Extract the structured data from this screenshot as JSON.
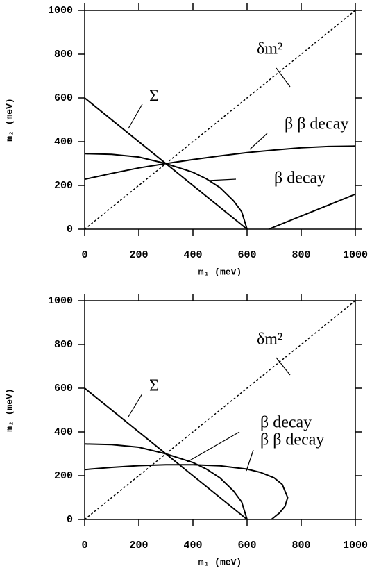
{
  "chart_data": [
    {
      "type": "line",
      "x_label": "m₁ (meV)",
      "y_label": "m₂ (meV)",
      "xlim": [
        0,
        1000
      ],
      "ylim": [
        0,
        1000
      ],
      "xticks": [
        0,
        200,
        400,
        600,
        800,
        1000
      ],
      "yticks": [
        0,
        200,
        400,
        600,
        800,
        1000
      ],
      "series": [
        {
          "name": "Σ",
          "color": "#000000",
          "style": "solid",
          "x": [
            0,
            600
          ],
          "values": [
            600,
            0
          ]
        },
        {
          "name": "δm²",
          "color": "#000000",
          "style": "dashed",
          "x": [
            0,
            1000
          ],
          "values": [
            0,
            1000
          ]
        },
        {
          "name": "β β decay",
          "color": "#000000",
          "style": "solid",
          "x": [
            0,
            100,
            200,
            300,
            400,
            500,
            600,
            700,
            800,
            900,
            1000,
            null,
            680,
            800,
            900,
            1000
          ],
          "values": [
            228,
            255,
            280,
            300,
            318,
            335,
            350,
            362,
            372,
            378,
            380,
            null,
            0,
            60,
            110,
            160
          ]
        },
        {
          "name": "β decay",
          "color": "#000000",
          "style": "solid",
          "x": [
            0,
            100,
            200,
            300,
            400,
            450,
            500,
            550,
            580,
            600
          ],
          "values": [
            345,
            342,
            330,
            300,
            260,
            230,
            190,
            130,
            80,
            0
          ]
        }
      ]
    },
    {
      "type": "line",
      "x_label": "m₁ (meV)",
      "y_label": "m₂ (meV)",
      "xlim": [
        0,
        1000
      ],
      "ylim": [
        0,
        1000
      ],
      "xticks": [
        0,
        200,
        400,
        600,
        800,
        1000
      ],
      "yticks": [
        0,
        200,
        400,
        600,
        800,
        1000
      ],
      "series": [
        {
          "name": "Σ",
          "color": "#000000",
          "style": "solid",
          "x": [
            0,
            600
          ],
          "values": [
            600,
            0
          ]
        },
        {
          "name": "δm²",
          "color": "#000000",
          "style": "dashed",
          "x": [
            0,
            1000
          ],
          "values": [
            0,
            1000
          ]
        },
        {
          "name": "β decay",
          "color": "#000000",
          "style": "solid",
          "x": [
            0,
            100,
            200,
            300,
            400,
            450,
            500,
            550,
            580,
            600
          ],
          "values": [
            345,
            342,
            330,
            300,
            260,
            230,
            190,
            130,
            80,
            0
          ]
        },
        {
          "name": "β β decay",
          "color": "#000000",
          "style": "solid",
          "x": [
            0,
            100,
            200,
            300,
            400,
            500,
            600,
            650,
            700,
            730,
            750,
            740,
            720,
            700,
            690
          ],
          "values": [
            228,
            238,
            246,
            250,
            250,
            245,
            230,
            215,
            190,
            160,
            100,
            60,
            30,
            10,
            0
          ]
        }
      ]
    }
  ]
}
